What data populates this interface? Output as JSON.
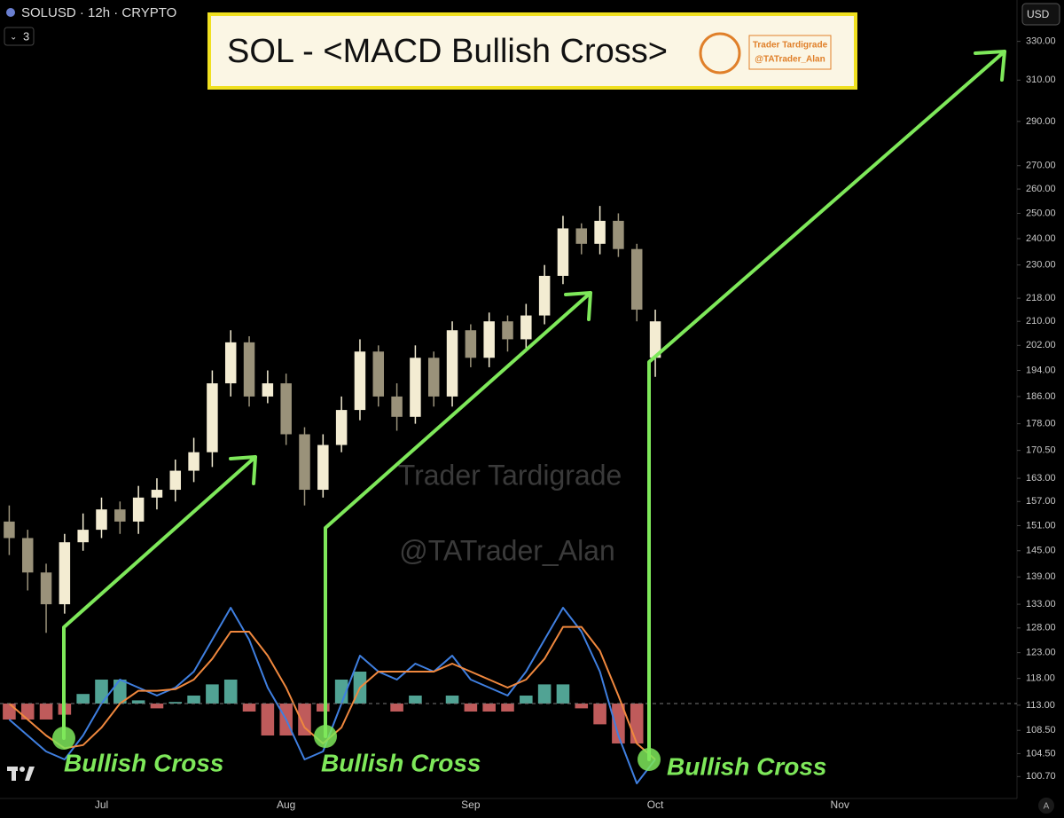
{
  "ui": {
    "symbol": "SOLUSD · 12h · CRYPTO",
    "indicators": "3",
    "currency": "USD",
    "auto_button": "A"
  },
  "chart_data": {
    "type": "candlestick",
    "title": "SOL - <MACD Bullish Cross>",
    "logo": [
      "Trader Tardigrade",
      "@TATrader_Alan"
    ],
    "watermark": [
      "Trader Tardigrade",
      "@TATrader_Alan"
    ],
    "annotations": [
      "Bullish Cross",
      "Bullish Cross",
      "Bullish Cross"
    ],
    "log_scale": true,
    "grid": false,
    "up_color": "#f3ecd2",
    "down_color": "#9a927a",
    "ylim": [
      97.2,
      352.8
    ],
    "yticks": [
      {
        "value": 330,
        "label": "330.00"
      },
      {
        "value": 310,
        "label": "310.00"
      },
      {
        "value": 290,
        "label": "290.00"
      },
      {
        "value": 270,
        "label": "270.00"
      },
      {
        "value": 260,
        "label": "260.00"
      },
      {
        "value": 250,
        "label": "250.00"
      },
      {
        "value": 240,
        "label": "240.00"
      },
      {
        "value": 230,
        "label": "230.00"
      },
      {
        "value": 218,
        "label": "218.00"
      },
      {
        "value": 210,
        "label": "210.00"
      },
      {
        "value": 202,
        "label": "202.00"
      },
      {
        "value": 194,
        "label": "194.00"
      },
      {
        "value": 186,
        "label": "186.00"
      },
      {
        "value": 178,
        "label": "178.00"
      },
      {
        "value": 170.5,
        "label": "170.50"
      },
      {
        "value": 163,
        "label": "163.00"
      },
      {
        "value": 157,
        "label": "157.00"
      },
      {
        "value": 151,
        "label": "151.00"
      },
      {
        "value": 145,
        "label": "145.00"
      },
      {
        "value": 139,
        "label": "139.00"
      },
      {
        "value": 133,
        "label": "133.00"
      },
      {
        "value": 128,
        "label": "128.00"
      },
      {
        "value": 123,
        "label": "123.00"
      },
      {
        "value": 118,
        "label": "118.00"
      },
      {
        "value": 113,
        "label": "113.00"
      },
      {
        "value": 108.5,
        "label": "108.50"
      },
      {
        "value": 104.5,
        "label": "104.50"
      },
      {
        "value": 100.7,
        "label": "100.70"
      }
    ],
    "categories": [
      null,
      null,
      null,
      null,
      null,
      "Jul",
      null,
      null,
      null,
      null,
      null,
      null,
      null,
      null,
      null,
      "Aug",
      null,
      null,
      null,
      null,
      null,
      null,
      null,
      null,
      null,
      "Sep",
      null,
      null,
      null,
      null,
      null,
      null,
      null,
      null,
      null,
      "Oct",
      null,
      null,
      null,
      null,
      null,
      null,
      null,
      null,
      null,
      "Nov",
      null,
      null,
      null,
      null,
      null,
      null,
      null,
      null,
      null
    ],
    "open": [
      152,
      148,
      140,
      133,
      147,
      150,
      155,
      152,
      158,
      160,
      165,
      170,
      190,
      203,
      186,
      190,
      175,
      160,
      172,
      182,
      200,
      186,
      180,
      198,
      186,
      207,
      198,
      210,
      204,
      212,
      226,
      244,
      238,
      247,
      236,
      198,
      null,
      null,
      null,
      null,
      null,
      null,
      null,
      null,
      null,
      null,
      null,
      null,
      null,
      null,
      null,
      null,
      null,
      null,
      null
    ],
    "high": [
      156,
      150,
      142,
      149,
      154,
      158,
      157,
      161,
      163,
      168,
      174,
      194,
      207,
      205,
      194,
      193,
      177,
      175,
      186,
      204,
      202,
      190,
      202,
      200,
      210,
      209,
      213,
      212,
      216,
      230,
      249,
      246,
      253,
      250,
      238,
      214,
      null,
      null,
      null,
      null,
      null,
      null,
      null,
      null,
      null,
      null,
      null,
      null,
      null,
      null,
      null,
      null,
      null,
      null,
      null
    ],
    "low": [
      144,
      136,
      127,
      131,
      145,
      148,
      149,
      149,
      155,
      157,
      162,
      166,
      186,
      183,
      184,
      172,
      156,
      158,
      170,
      179,
      183,
      176,
      178,
      183,
      183,
      195,
      195,
      200,
      201,
      209,
      223,
      234,
      234,
      233,
      210,
      192,
      null,
      null,
      null,
      null,
      null,
      null,
      null,
      null,
      null,
      null,
      null,
      null,
      null,
      null,
      null,
      null,
      null,
      null,
      null
    ],
    "close": [
      148,
      140,
      133,
      147,
      150,
      155,
      152,
      158,
      160,
      165,
      170,
      190,
      203,
      186,
      190,
      175,
      160,
      172,
      182,
      200,
      186,
      180,
      198,
      186,
      207,
      198,
      210,
      204,
      212,
      226,
      244,
      238,
      247,
      236,
      214,
      210,
      null,
      null,
      null,
      null,
      null,
      null,
      null,
      null,
      null,
      null,
      null,
      null,
      null,
      null,
      null,
      null,
      null,
      null,
      null
    ],
    "series": [
      {
        "color": "#3f7fe0",
        "values": [
          -1,
          -2,
          -3,
          -3.5,
          -2,
          0,
          1.5,
          1,
          0.5,
          1,
          2,
          4,
          6,
          4,
          1,
          -1,
          -3.5,
          -3,
          0,
          3,
          2,
          1.5,
          2.5,
          2,
          3,
          1.5,
          1,
          0.5,
          2,
          4,
          6,
          4.5,
          2,
          -2,
          -5,
          -3.5,
          null,
          null,
          null,
          null,
          null,
          null,
          null,
          null,
          null,
          null,
          null,
          null,
          null,
          null,
          null,
          null,
          null,
          null,
          null
        ]
      },
      {
        "color": "#f0883e",
        "values": [
          0,
          -1,
          -2,
          -2.8,
          -2.6,
          -1.5,
          0,
          0.8,
          0.8,
          0.9,
          1.5,
          2.8,
          4.5,
          4.5,
          3,
          1,
          -1.5,
          -2.5,
          -1.5,
          1,
          2,
          2,
          2,
          2,
          2.5,
          2,
          1.5,
          1,
          1.5,
          2.8,
          4.8,
          4.8,
          3.3,
          0.5,
          -2.5,
          -3.5,
          null,
          null,
          null,
          null,
          null,
          null,
          null,
          null,
          null,
          null,
          null,
          null,
          null,
          null,
          null,
          null,
          null,
          null,
          null
        ]
      }
    ],
    "histogram": {
      "pos_color": "#5fbfae",
      "neg_color": "#e06b6b",
      "values": [
        -1,
        -1,
        -1,
        -0.7,
        0.6,
        1.5,
        1.5,
        0.2,
        -0.3,
        0.1,
        0.5,
        1.2,
        1.5,
        -0.5,
        -2,
        -2,
        -2,
        -0.5,
        1.5,
        2,
        0,
        -0.5,
        0.5,
        0,
        0.5,
        -0.5,
        -0.5,
        -0.5,
        0.5,
        1.2,
        1.2,
        -0.3,
        -1.3,
        -2.5,
        -2.5,
        0,
        null,
        null,
        null,
        null,
        null,
        null,
        null,
        null,
        null,
        null,
        null,
        null,
        null,
        null,
        null,
        null,
        null,
        null,
        null
      ]
    }
  }
}
